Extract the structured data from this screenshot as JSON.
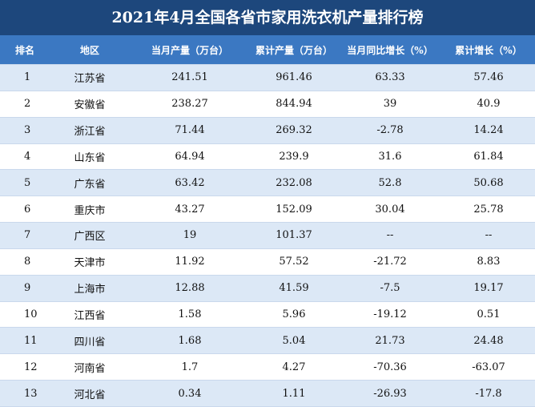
{
  "title": "2021年4月全国各省市家用洗衣机产量排行榜",
  "table": {
    "header": [
      "排名",
      "地区",
      "当月产量（万台）",
      "累计产量（万台）",
      "当月同比增长（%）",
      "累计增长（%）"
    ],
    "rows": [
      [
        "1",
        "江苏省",
        "241.51",
        "961.46",
        "63.33",
        "57.46"
      ],
      [
        "2",
        "安徽省",
        "238.27",
        "844.94",
        "39",
        "40.9"
      ],
      [
        "3",
        "浙江省",
        "71.44",
        "269.32",
        "-2.78",
        "14.24"
      ],
      [
        "4",
        "山东省",
        "64.94",
        "239.9",
        "31.6",
        "61.84"
      ],
      [
        "5",
        "广东省",
        "63.42",
        "232.08",
        "52.8",
        "50.68"
      ],
      [
        "6",
        "重庆市",
        "43.27",
        "152.09",
        "30.04",
        "25.78"
      ],
      [
        "7",
        "广西区",
        "19",
        "101.37",
        "--",
        "--"
      ],
      [
        "8",
        "天津市",
        "11.92",
        "57.52",
        "-21.72",
        "8.83"
      ],
      [
        "9",
        "上海市",
        "12.88",
        "41.59",
        "-7.5",
        "19.17"
      ],
      [
        "10",
        "江西省",
        "1.58",
        "5.96",
        "-19.12",
        "0.51"
      ],
      [
        "11",
        "四川省",
        "1.68",
        "5.04",
        "21.73",
        "24.48"
      ],
      [
        "12",
        "河南省",
        "1.7",
        "4.27",
        "-70.36",
        "-63.07"
      ],
      [
        "13",
        "河北省",
        "0.34",
        "1.11",
        "-26.93",
        "-17.8"
      ]
    ]
  }
}
